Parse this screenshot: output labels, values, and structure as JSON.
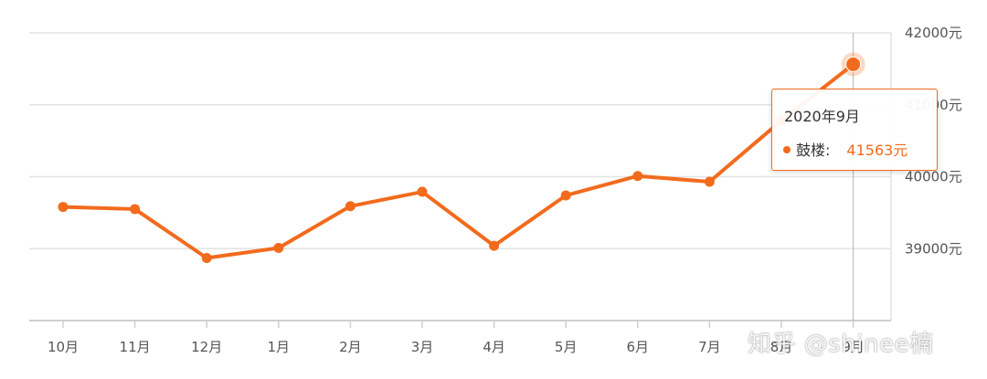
{
  "chart_data": {
    "type": "line",
    "categories": [
      "10月",
      "11月",
      "12月",
      "1月",
      "2月",
      "3月",
      "4月",
      "5月",
      "6月",
      "7月",
      "8月",
      "9月"
    ],
    "series": [
      {
        "name": "鼓楼",
        "values": [
          39580,
          39550,
          38870,
          39010,
          39590,
          39790,
          39040,
          39740,
          40010,
          39930,
          40780,
          41563
        ],
        "color": "#f26b1d"
      }
    ],
    "yticks": [
      "39000元",
      "40000元",
      "41000元",
      "42000元"
    ],
    "ylim": [
      38000,
      42000
    ],
    "grid": "horizontal",
    "title": "",
    "xlabel": "",
    "ylabel": ""
  },
  "tooltip": {
    "title": "2020年9月",
    "series_name": "鼓楼:",
    "value": "41563元"
  },
  "watermark": {
    "text": "知乎 @shinee楠"
  }
}
